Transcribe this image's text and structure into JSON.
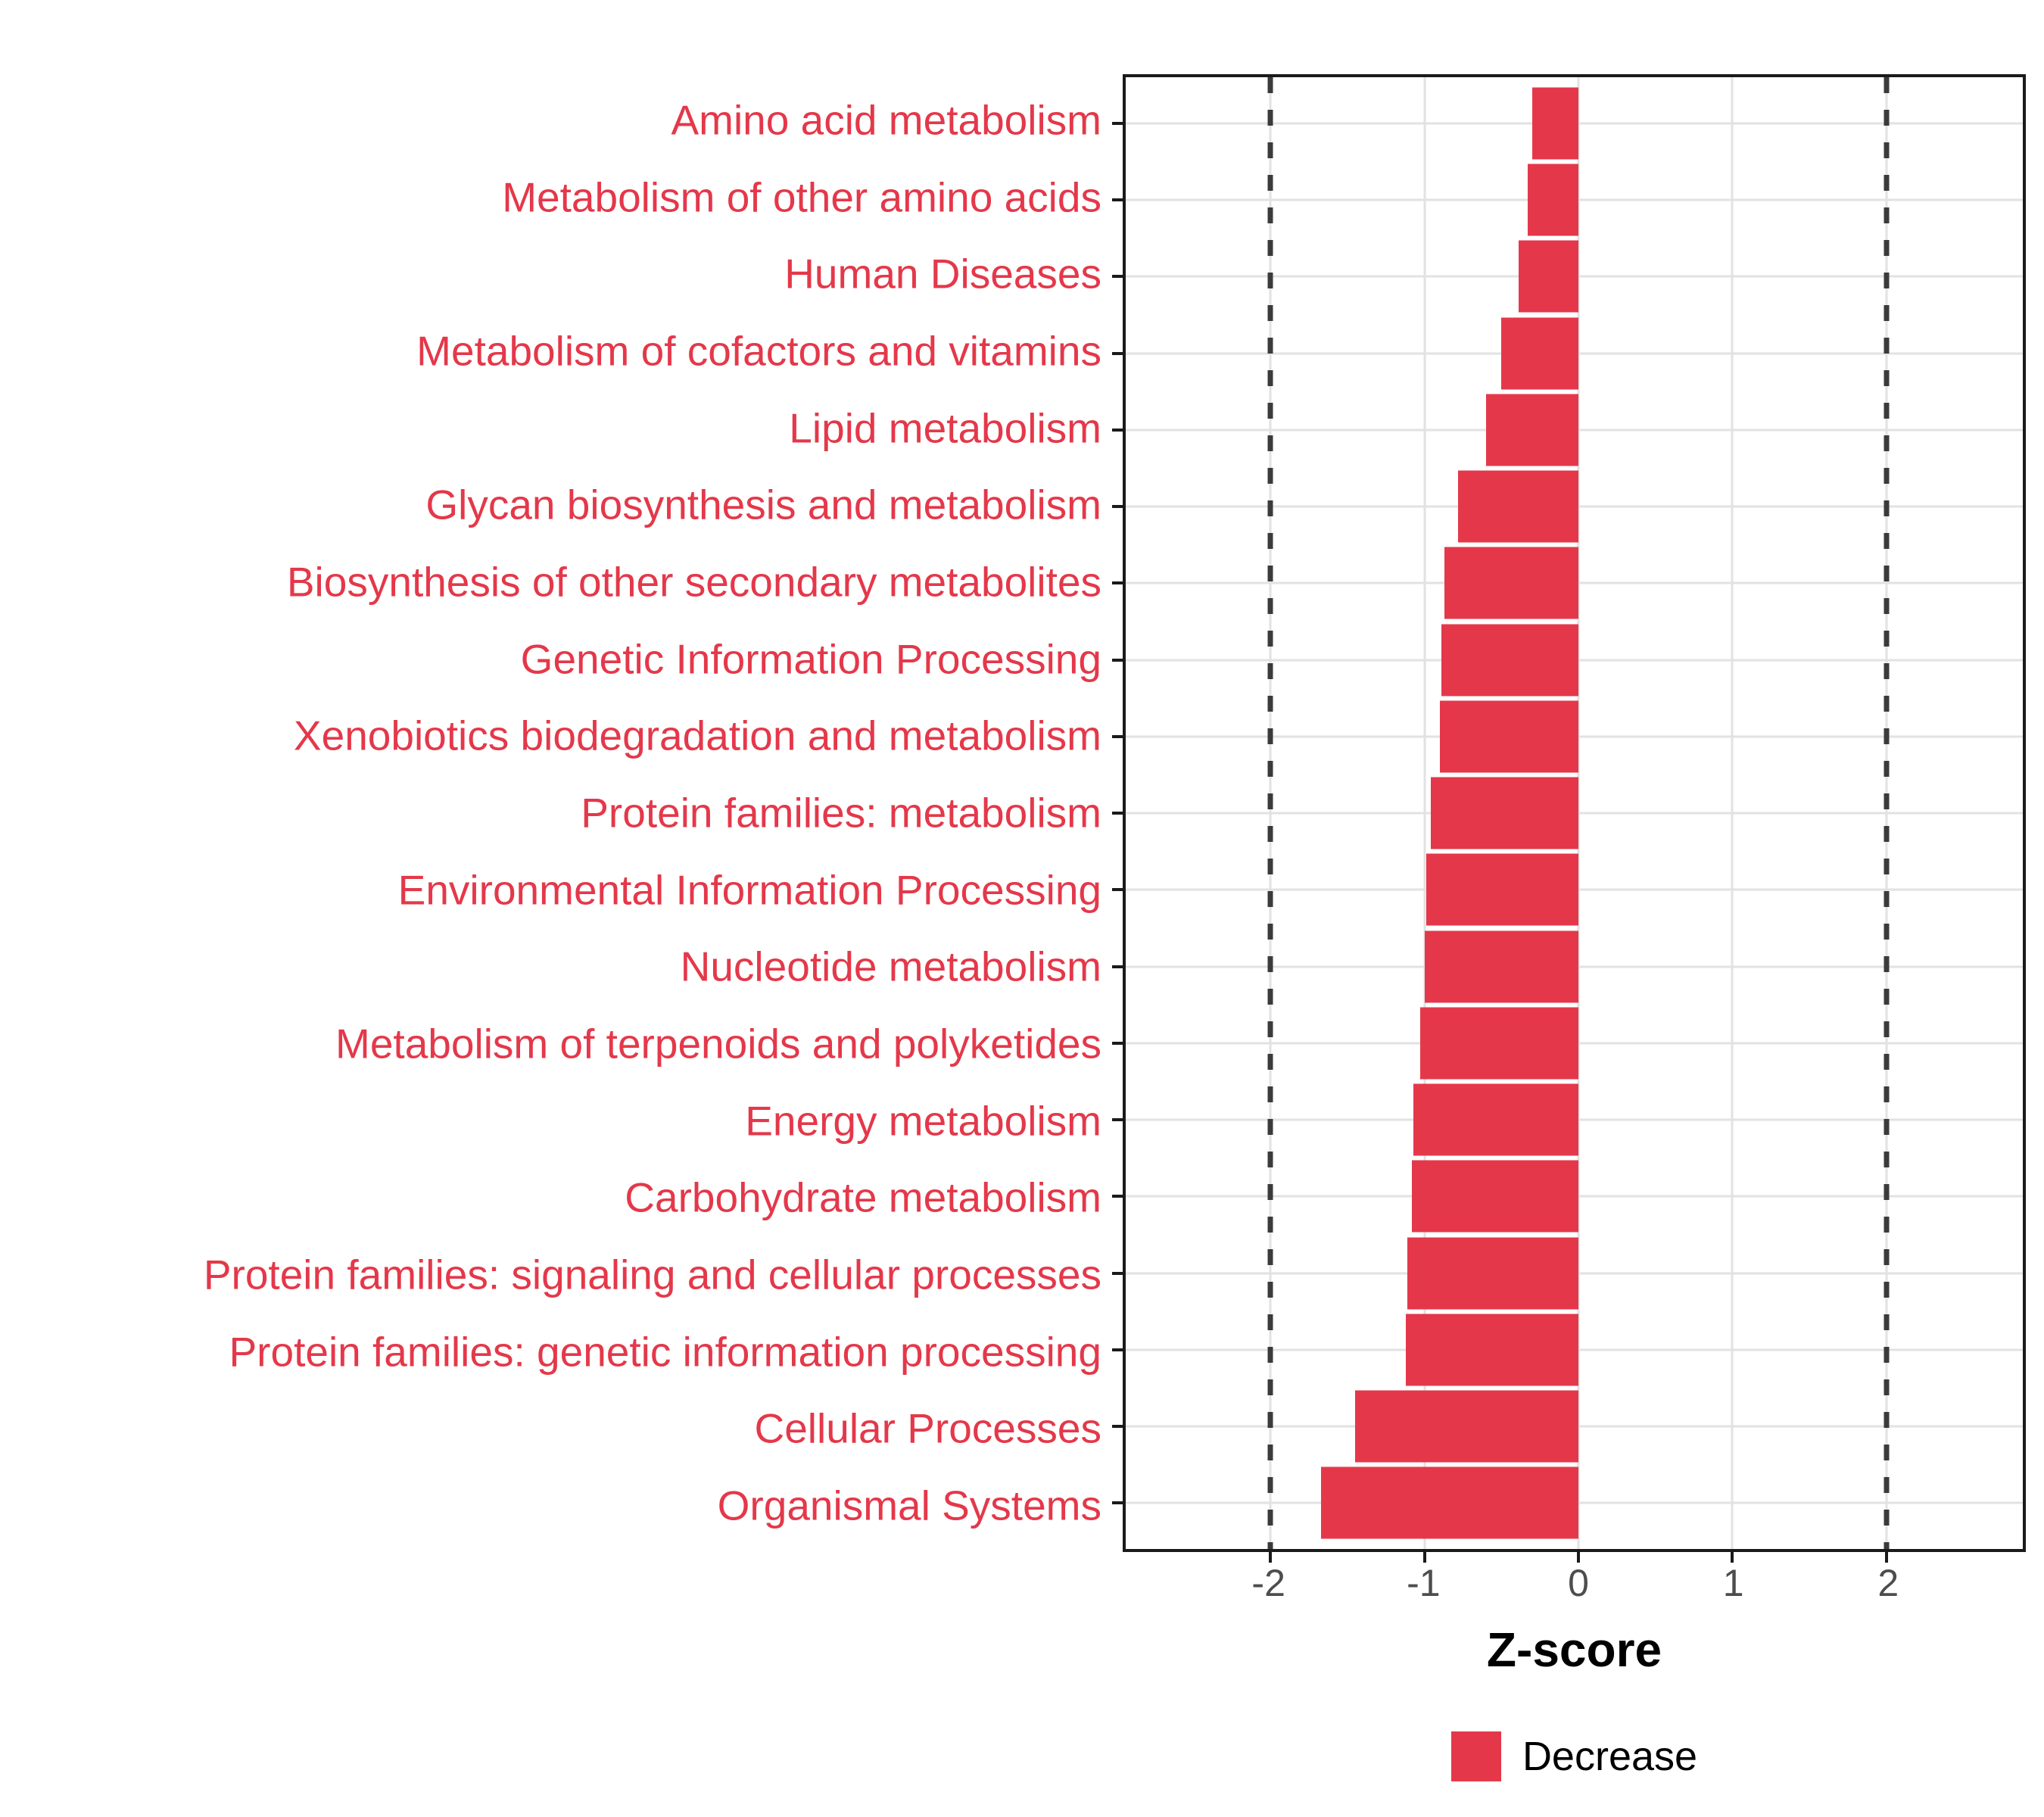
{
  "chart_data": {
    "type": "bar",
    "orientation": "horizontal",
    "xlabel": "Z-score",
    "categories": [
      "Amino acid metabolism",
      "Metabolism of other amino acids",
      "Human Diseases",
      "Metabolism of cofactors and vitamins",
      "Lipid metabolism",
      "Glycan biosynthesis and metabolism",
      "Biosynthesis of other secondary metabolites",
      "Genetic Information Processing",
      "Xenobiotics biodegradation and metabolism",
      "Protein families: metabolism",
      "Environmental Information Processing",
      "Nucleotide metabolism",
      "Metabolism of terpenoids and polyketides",
      "Energy metabolism",
      "Carbohydrate metabolism",
      "Protein families: signaling and cellular processes",
      "Protein families: genetic information processing",
      "Cellular Processes",
      "Organismal Systems"
    ],
    "values": [
      -0.3,
      -0.33,
      -0.39,
      -0.5,
      -0.6,
      -0.78,
      -0.87,
      -0.89,
      -0.9,
      -0.96,
      -0.99,
      -1.0,
      -1.03,
      -1.07,
      -1.08,
      -1.11,
      -1.12,
      -1.45,
      -1.67
    ],
    "x_ticks": [
      "-2",
      "-1",
      "0",
      "1",
      "2"
    ],
    "x_tick_values": [
      -2,
      -1,
      0,
      1,
      2
    ],
    "xlim": [
      -2.9414,
      2.8878
    ],
    "reference_lines": [
      -2,
      2
    ],
    "grid": true,
    "legend": {
      "label": "Decrease",
      "position": "bottom"
    },
    "colors": {
      "bar": "#E4384A",
      "category_label": "#E4384A",
      "tick_label": "#4D4D4D",
      "grid": "#E2E2E2",
      "dashed_line": "#3B3B3B",
      "panel_border": "#1A1A1A",
      "background": "#FFFFFF"
    }
  }
}
